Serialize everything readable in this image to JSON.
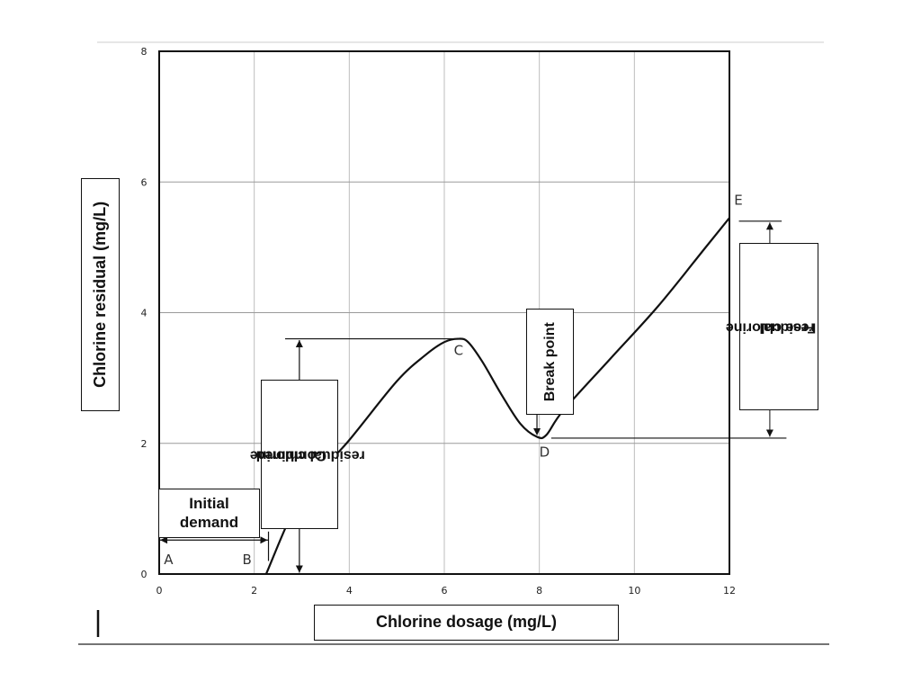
{
  "chart_data": {
    "type": "line",
    "title": "",
    "xlabel": "Chlorine dosage (mg/L)",
    "ylabel": "Chlorine residual  (mg/L)",
    "xlim": [
      0,
      12
    ],
    "ylim": [
      0,
      8
    ],
    "x_ticks": [
      "0",
      "2",
      "4",
      "6",
      "8",
      "10",
      "12"
    ],
    "y_ticks": [
      "0",
      "2",
      "4",
      "6",
      "8"
    ],
    "grid": true,
    "series": [
      {
        "name": "",
        "x": [
          2.25,
          3.0,
          4.0,
          5.0,
          5.6,
          6.0,
          6.3,
          6.5,
          6.8,
          7.2,
          7.6,
          7.95,
          8.15,
          8.5,
          9.5,
          10.5,
          11.5,
          12.0
        ],
        "y": [
          0.0,
          1.2,
          2.05,
          2.95,
          3.35,
          3.55,
          3.6,
          3.55,
          3.25,
          2.75,
          2.3,
          2.1,
          2.13,
          2.5,
          3.3,
          4.1,
          5.0,
          5.45
        ]
      }
    ],
    "points": [
      {
        "label": "A",
        "x": 0.1,
        "y": 0.15
      },
      {
        "label": "B",
        "x": 1.75,
        "y": 0.15
      },
      {
        "label": "C",
        "x": 6.2,
        "y": 3.35
      },
      {
        "label": "D",
        "x": 8.0,
        "y": 1.8
      },
      {
        "label": "E",
        "x": 12.1,
        "y": 5.65
      }
    ],
    "annotations": {
      "initial_demand": "Initial demand",
      "combined_residual": "Combined residual chlorine",
      "break_point": "Break point",
      "free_residual": "Free chlorine residual"
    }
  },
  "labels": {
    "ylabel": "Chlorine residual  (mg/L)",
    "xlabel": "Chlorine dosage (mg/L)",
    "initial_demand_1": "Initial",
    "initial_demand_2": "demand",
    "combined_1": "Combined",
    "combined_2": "residual chlorine",
    "break_point": "Break point",
    "free_1": "Free chlorine",
    "free_2": "residual"
  }
}
